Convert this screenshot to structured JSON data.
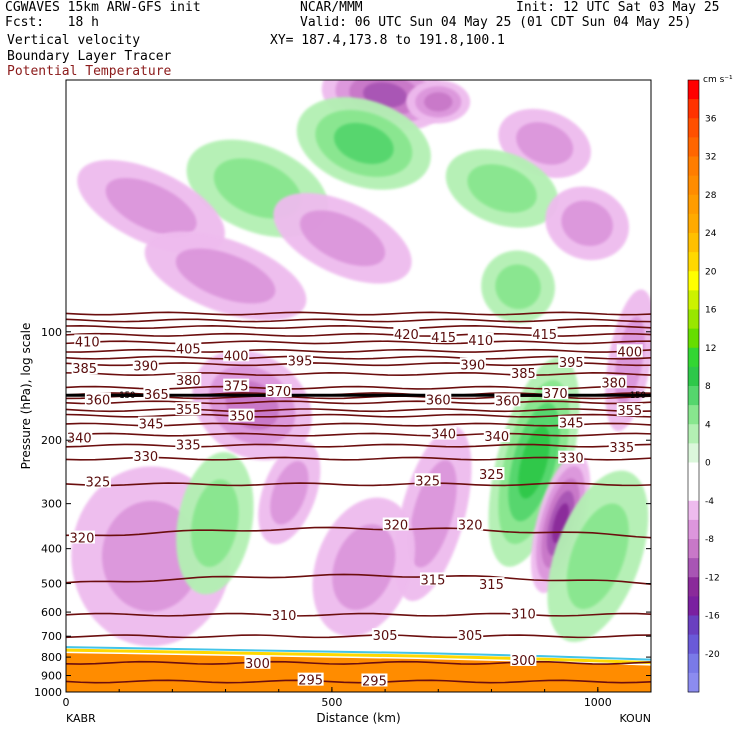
{
  "header": {
    "model": "CGWAVES 15km ARW-GFS init",
    "org": "NCAR/MMM",
    "init": "Init: 12 UTC Sat 03 May 25",
    "fcst": "Fcst:   18 h",
    "valid": "Valid: 06 UTC Sun 04 May 25 (01 CDT Sun 04 May 25)",
    "field1": "Vertical velocity",
    "xy": "XY= 187.4,173.8 to 191.8,100.1",
    "field2": "Boundary Layer Tracer",
    "field3": "Potential Temperature"
  },
  "chart_data": {
    "type": "contour",
    "xlabel": "Distance (km)",
    "ylabel": "Pressure (hPa), log scale",
    "x_ticks": [
      "0",
      "500",
      "1000"
    ],
    "x_tick_values": [
      0,
      500,
      1000
    ],
    "xlim": [
      0,
      1100
    ],
    "x_endpoints": [
      "KABR",
      "KOUN"
    ],
    "y_scale": "log",
    "y_ticks": [
      "100",
      "200",
      "300",
      "400",
      "500",
      "600",
      "700",
      "800",
      "900",
      "1000"
    ],
    "y_tick_values": [
      100,
      200,
      300,
      400,
      500,
      600,
      700,
      800,
      900,
      1000
    ],
    "ylim": [
      1000,
      20
    ],
    "colorbar": {
      "unit": "cm s⁻¹",
      "labels": [
        "36",
        "32",
        "28",
        "24",
        "20",
        "16",
        "12",
        "8",
        "4",
        "0",
        "-4",
        "-8",
        "-12",
        "-16",
        "-20"
      ],
      "levels": [
        40,
        38,
        36,
        34,
        32,
        30,
        28,
        26,
        24,
        22,
        20,
        18,
        16,
        14,
        12,
        10,
        8,
        6,
        4,
        2,
        0,
        -2,
        -4,
        -6,
        -8,
        -10,
        -12,
        -14,
        -16,
        -18,
        -20,
        -22
      ],
      "colors": [
        "#ff0000",
        "#ff3300",
        "#ff5000",
        "#ff6600",
        "#ff7d00",
        "#ff8c00",
        "#ff9c00",
        "#ffaa00",
        "#ffc000",
        "#ffd800",
        "#ffff00",
        "#ccf200",
        "#99e600",
        "#66dd00",
        "#33d633",
        "#2ec84a",
        "#55d66d",
        "#88e68e",
        "#b3f0b3",
        "#dbf7db",
        "#ffffff",
        "#ffffff",
        "#eebbee",
        "#dc96dc",
        "#c878c8",
        "#a855b4",
        "#8a2a9a",
        "#7a20a0",
        "#6a40c0",
        "#6a5ad8",
        "#7a7ae8",
        "#8c8cf0"
      ]
    },
    "theta_contours": [
      {
        "value": 295,
        "p": 935,
        "tilt": 0
      },
      {
        "value": 300,
        "p": 830,
        "tilt": 0
      },
      {
        "value": 305,
        "p": 700,
        "tilt": 0
      },
      {
        "value": 310,
        "p": 610,
        "tilt": 0
      },
      {
        "value": 315,
        "p": 500,
        "tilt": 0
      },
      {
        "value": 320,
        "p": 370,
        "tilt": 0
      },
      {
        "value": 325,
        "p": 265,
        "tilt": 0
      },
      {
        "value": 330,
        "p": 225,
        "tilt": 0
      },
      {
        "value": 335,
        "p": 207,
        "tilt": 0
      },
      {
        "value": 340,
        "p": 193,
        "tilt": 0
      },
      {
        "value": 345,
        "p": 181,
        "tilt": 0
      },
      {
        "value": 350,
        "p": 171,
        "tilt": 0
      },
      {
        "value": 355,
        "p": 165,
        "tilt": 0
      },
      {
        "value": 360,
        "p": 157,
        "tilt": 0
      },
      {
        "value": 365,
        "p": 152,
        "tilt": 0
      },
      {
        "value": 370,
        "p": 149,
        "tilt": 0
      },
      {
        "value": 375,
        "p": 143,
        "tilt": 0
      },
      {
        "value": 380,
        "p": 131,
        "tilt": 0
      },
      {
        "value": 385,
        "p": 123,
        "tilt": 0
      },
      {
        "value": 390,
        "p": 118,
        "tilt": 0
      },
      {
        "value": 395,
        "p": 113,
        "tilt": 0
      },
      {
        "value": 400,
        "p": 107,
        "tilt": 0
      },
      {
        "value": 405,
        "p": 102,
        "tilt": 0
      },
      {
        "value": 410,
        "p": 97,
        "tilt": 0
      },
      {
        "value": 415,
        "p": 93,
        "tilt": 0
      },
      {
        "value": 420,
        "p": 89,
        "tilt": 0
      }
    ],
    "theta_labels": [
      {
        "text": "295",
        "x": 460,
        "p": 930
      },
      {
        "text": "295",
        "x": 580,
        "p": 935
      },
      {
        "text": "300",
        "x": 360,
        "p": 835
      },
      {
        "text": "300",
        "x": 860,
        "p": 820
      },
      {
        "text": "305",
        "x": 600,
        "p": 700
      },
      {
        "text": "305",
        "x": 760,
        "p": 700
      },
      {
        "text": "310",
        "x": 410,
        "p": 615
      },
      {
        "text": "310",
        "x": 860,
        "p": 610
      },
      {
        "text": "315",
        "x": 690,
        "p": 490
      },
      {
        "text": "315",
        "x": 800,
        "p": 505
      },
      {
        "text": "320",
        "x": 30,
        "p": 375
      },
      {
        "text": "320",
        "x": 620,
        "p": 345
      },
      {
        "text": "320",
        "x": 760,
        "p": 345
      },
      {
        "text": "325",
        "x": 60,
        "p": 262
      },
      {
        "text": "325",
        "x": 680,
        "p": 260
      },
      {
        "text": "325",
        "x": 800,
        "p": 250
      },
      {
        "text": "330",
        "x": 150,
        "p": 223
      },
      {
        "text": "330",
        "x": 950,
        "p": 225
      },
      {
        "text": "335",
        "x": 230,
        "p": 207
      },
      {
        "text": "335",
        "x": 1045,
        "p": 210
      },
      {
        "text": "340",
        "x": 25,
        "p": 198
      },
      {
        "text": "340",
        "x": 710,
        "p": 193
      },
      {
        "text": "340",
        "x": 810,
        "p": 196
      },
      {
        "text": "345",
        "x": 160,
        "p": 181
      },
      {
        "text": "345",
        "x": 950,
        "p": 180
      },
      {
        "text": "350",
        "x": 330,
        "p": 172
      },
      {
        "text": "355",
        "x": 230,
        "p": 165
      },
      {
        "text": "355",
        "x": 1060,
        "p": 166
      },
      {
        "text": "360",
        "x": 60,
        "p": 155
      },
      {
        "text": "360",
        "x": 700,
        "p": 155
      },
      {
        "text": "360",
        "x": 830,
        "p": 156
      },
      {
        "text": "365",
        "x": 170,
        "p": 150
      },
      {
        "text": "370",
        "x": 400,
        "p": 147
      },
      {
        "text": "370",
        "x": 920,
        "p": 149
      },
      {
        "text": "375",
        "x": 320,
        "p": 142
      },
      {
        "text": "380",
        "x": 230,
        "p": 137
      },
      {
        "text": "380",
        "x": 1030,
        "p": 139
      },
      {
        "text": "385",
        "x": 35,
        "p": 127
      },
      {
        "text": "385",
        "x": 860,
        "p": 131
      },
      {
        "text": "390",
        "x": 150,
        "p": 125
      },
      {
        "text": "390",
        "x": 765,
        "p": 124
      },
      {
        "text": "395",
        "x": 440,
        "p": 121
      },
      {
        "text": "395",
        "x": 950,
        "p": 122
      },
      {
        "text": "400",
        "x": 320,
        "p": 117
      },
      {
        "text": "400",
        "x": 1060,
        "p": 114
      },
      {
        "text": "405",
        "x": 230,
        "p": 112
      },
      {
        "text": "410",
        "x": 40,
        "p": 107
      },
      {
        "text": "410",
        "x": 780,
        "p": 106
      },
      {
        "text": "415",
        "x": 710,
        "p": 104
      },
      {
        "text": "415",
        "x": 900,
        "p": 102
      },
      {
        "text": "420",
        "x": 640,
        "p": 102
      }
    ],
    "tropopause_labels": [
      "150",
      "150"
    ],
    "w_blobs": [
      {
        "x": 600,
        "p": 22,
        "rx": 120,
        "rp": 0.1,
        "rot": 8,
        "level": -8
      },
      {
        "x": 700,
        "p": 23,
        "rx": 60,
        "rp": 0.06,
        "rot": 0,
        "level": -6
      },
      {
        "x": 560,
        "p": 30,
        "rx": 130,
        "rp": 0.12,
        "rot": 18,
        "level": 6
      },
      {
        "x": 360,
        "p": 40,
        "rx": 140,
        "rp": 0.12,
        "rot": 22,
        "level": 4
      },
      {
        "x": 160,
        "p": 45,
        "rx": 150,
        "rp": 0.1,
        "rot": 25,
        "level": -4
      },
      {
        "x": 520,
        "p": 55,
        "rx": 140,
        "rp": 0.1,
        "rot": 25,
        "level": -4
      },
      {
        "x": 900,
        "p": 30,
        "rx": 90,
        "rp": 0.09,
        "rot": 20,
        "level": -4
      },
      {
        "x": 820,
        "p": 40,
        "rx": 110,
        "rp": 0.1,
        "rot": 20,
        "level": 4
      },
      {
        "x": 980,
        "p": 50,
        "rx": 80,
        "rp": 0.1,
        "rot": 20,
        "level": -4
      },
      {
        "x": 300,
        "p": 70,
        "rx": 160,
        "rp": 0.1,
        "rot": 20,
        "level": -4
      },
      {
        "x": 850,
        "p": 75,
        "rx": 70,
        "rp": 0.1,
        "rot": 30,
        "level": 4
      },
      {
        "x": 350,
        "p": 160,
        "rx": 120,
        "rp": 0.14,
        "rot": 35,
        "level": -5
      },
      {
        "x": 880,
        "p": 230,
        "rx": 70,
        "rp": 0.3,
        "rot": 15,
        "level": 8
      },
      {
        "x": 930,
        "p": 340,
        "rx": 45,
        "rp": 0.2,
        "rot": 15,
        "level": -10
      },
      {
        "x": 690,
        "p": 320,
        "rx": 60,
        "rp": 0.25,
        "rot": 15,
        "level": -4
      },
      {
        "x": 560,
        "p": 450,
        "rx": 90,
        "rp": 0.2,
        "rot": 20,
        "level": -4
      },
      {
        "x": 160,
        "p": 420,
        "rx": 150,
        "rp": 0.25,
        "rot": 0,
        "level": -3
      },
      {
        "x": 280,
        "p": 340,
        "rx": 70,
        "rp": 0.2,
        "rot": 10,
        "level": 4
      },
      {
        "x": 420,
        "p": 280,
        "rx": 50,
        "rp": 0.15,
        "rot": 20,
        "level": -4
      },
      {
        "x": 1000,
        "p": 420,
        "rx": 80,
        "rp": 0.25,
        "rot": 20,
        "level": 4
      },
      {
        "x": 1060,
        "p": 120,
        "rx": 40,
        "rp": 0.2,
        "rot": 10,
        "level": -4
      }
    ],
    "bl_tracer_top_hpa": [
      780,
      790,
      800,
      810,
      825,
      845
    ]
  }
}
